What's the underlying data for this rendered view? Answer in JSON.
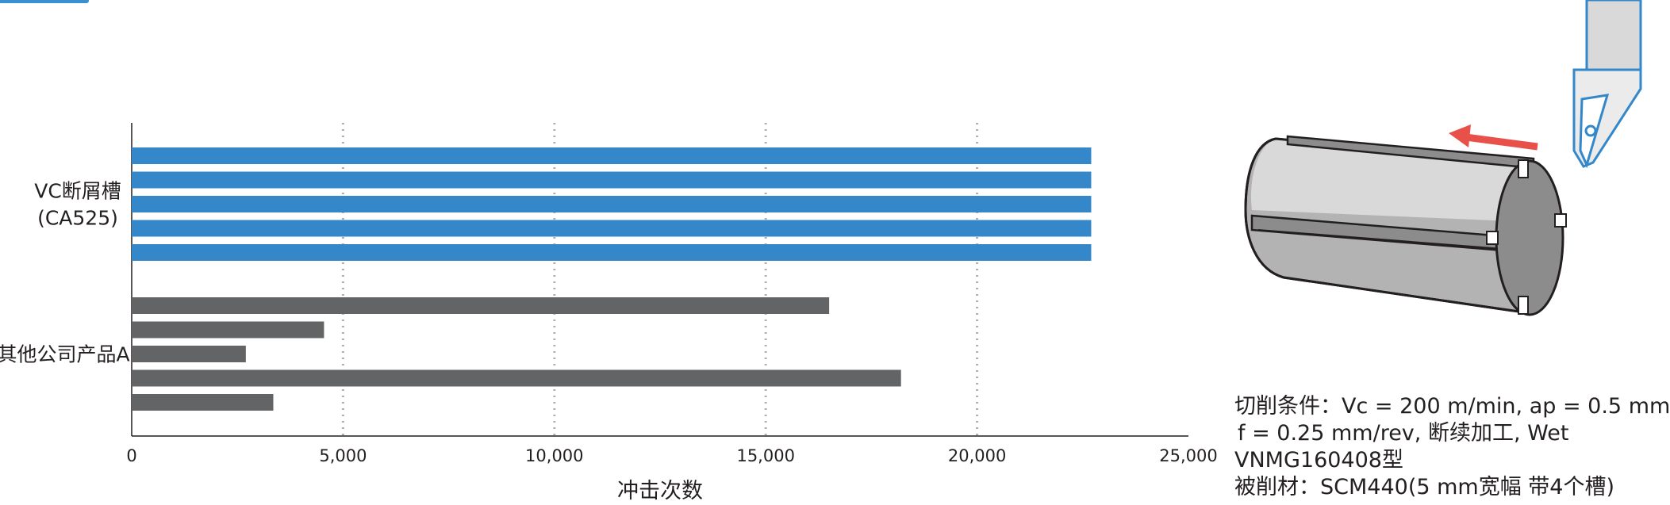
{
  "chart_data": {
    "type": "bar",
    "orientation": "horizontal",
    "xlabel": "冲击次数",
    "xlim": [
      0,
      25000
    ],
    "xticks": [
      0,
      5000,
      10000,
      15000,
      20000,
      25000
    ],
    "xtick_labels": [
      "0",
      "5,000",
      "10,000",
      "15,000",
      "20,000",
      "25,000"
    ],
    "grid": "vertical dotted",
    "groups": [
      {
        "label_lines": [
          "VC断屑槽",
          "(CA525)"
        ],
        "color": "#3488c9",
        "values": [
          22700,
          22700,
          22700,
          22700,
          22700
        ]
      },
      {
        "label_lines": [
          "其他公司产品A"
        ],
        "color": "#636466",
        "values": [
          16500,
          4550,
          2700,
          18200,
          3350
        ]
      }
    ]
  },
  "conditions": {
    "line1": "切削条件：Vc = 200 m/min, ap = 0.5 mm",
    "line2": "f = 0.25 mm/rev, 断续加工, Wet",
    "line3": "VNMG160408型",
    "line4": "被削材：SCM440(5 mm宽幅 带4个槽)"
  },
  "colors": {
    "accent": "#3488c9",
    "competitor": "#636466",
    "arrow": "#e8514a"
  }
}
